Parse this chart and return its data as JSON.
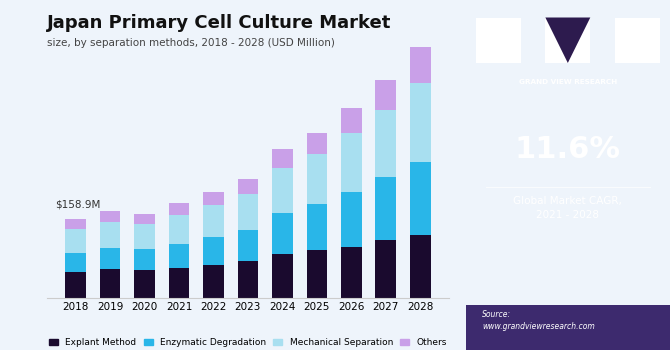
{
  "years": [
    "2018",
    "2019",
    "2020",
    "2021",
    "2022",
    "2023",
    "2024",
    "2025",
    "2026",
    "2027",
    "2028"
  ],
  "explant_method": [
    52,
    57,
    56,
    60,
    66,
    73,
    88,
    95,
    102,
    115,
    125
  ],
  "enzymatic_degradation": [
    38,
    43,
    42,
    48,
    55,
    63,
    82,
    93,
    110,
    128,
    148
  ],
  "mechanical_separation": [
    48,
    52,
    50,
    58,
    65,
    72,
    90,
    100,
    118,
    135,
    158
  ],
  "others": [
    20,
    22,
    20,
    24,
    27,
    30,
    38,
    42,
    52,
    60,
    72
  ],
  "colors": {
    "explant_method": "#1a0a2e",
    "enzymatic_degradation": "#29b6e8",
    "mechanical_separation": "#a8dff0",
    "others": "#c9a0e8"
  },
  "annotation": "$158.9M",
  "title_line1": "Japan Primary Cell Culture Market",
  "title_line2": "size, by separation methods, 2018 - 2028 (USD Million)",
  "cagr_text": "11.6%",
  "cagr_label": "Global Market CAGR,\n2021 - 2028",
  "source_text": "Source:\nwww.grandviewresearch.com",
  "legend_labels": [
    "Explant Method",
    "Enzymatic Degradation",
    "Mechanical Separation",
    "Others"
  ],
  "right_panel_color": "#2d1b4e",
  "chart_bg_color": "#eef4fb",
  "bar_width": 0.6
}
